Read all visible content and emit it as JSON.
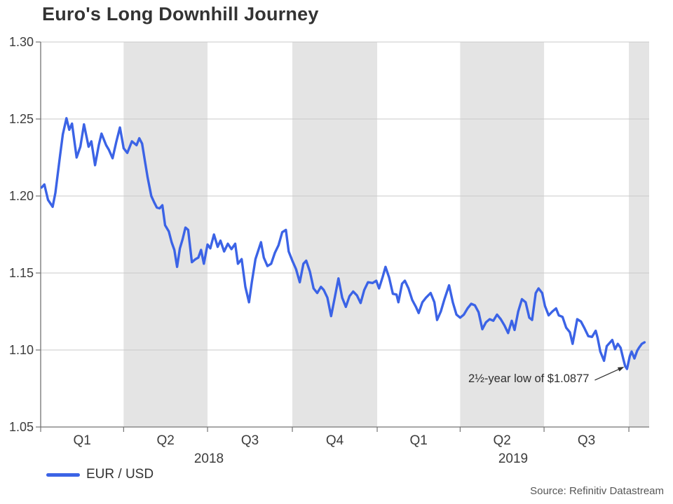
{
  "title": "Euro's Long Downhill Journey",
  "source_note": "Source: Refinitiv Datastream",
  "legend": {
    "label": "EUR / USD"
  },
  "annotation": {
    "text": "2½-year low of $1.0877",
    "target_date": "2019-09-29",
    "target_value": 1.0877
  },
  "colors": {
    "line": "#3b63e6",
    "band": "#e4e4e4",
    "gridline": "#c9c9c9",
    "axis": "#737373",
    "text": "#333333",
    "annotation_ink": "#2e2e2e"
  },
  "chart_data": {
    "type": "line",
    "title": "Euro's Long Downhill Journey",
    "xlabel": "",
    "ylabel": "",
    "ylim": [
      1.05,
      1.3
    ],
    "yticks": [
      1.3,
      1.25,
      1.2,
      1.15,
      1.1,
      1.05
    ],
    "x_range": [
      "2018-01-01",
      "2019-10-23"
    ],
    "grid": "horizontal",
    "legend_position": "bottom-left",
    "quarters": [
      {
        "label": "Q1",
        "start": "2018-01-01",
        "end": "2018-04-01",
        "shaded": false
      },
      {
        "label": "Q2",
        "start": "2018-04-01",
        "end": "2018-07-01",
        "shaded": true
      },
      {
        "label": "Q3",
        "start": "2018-07-01",
        "end": "2018-10-01",
        "shaded": false
      },
      {
        "label": "Q4",
        "start": "2018-10-01",
        "end": "2019-01-01",
        "shaded": true
      },
      {
        "label": "Q1",
        "start": "2019-01-01",
        "end": "2019-04-01",
        "shaded": false
      },
      {
        "label": "Q2",
        "start": "2019-04-01",
        "end": "2019-07-01",
        "shaded": true
      },
      {
        "label": "Q3",
        "start": "2019-07-01",
        "end": "2019-10-01",
        "shaded": false
      },
      {
        "label": "",
        "start": "2019-10-01",
        "end": "2019-10-23",
        "shaded": true
      }
    ],
    "years": [
      {
        "label": "2018",
        "start": "2018-01-01",
        "end": "2019-01-01"
      },
      {
        "label": "2019",
        "start": "2019-01-01",
        "end": "2019-10-23"
      }
    ],
    "series": [
      {
        "name": "EUR / USD",
        "points": [
          [
            "2018-01-02",
            1.2055
          ],
          [
            "2018-01-05",
            1.2075
          ],
          [
            "2018-01-09",
            1.1975
          ],
          [
            "2018-01-14",
            1.193
          ],
          [
            "2018-01-17",
            1.202
          ],
          [
            "2018-01-22",
            1.226
          ],
          [
            "2018-01-25",
            1.24
          ],
          [
            "2018-01-29",
            1.2505
          ],
          [
            "2018-02-01",
            1.243
          ],
          [
            "2018-02-04",
            1.247
          ],
          [
            "2018-02-09",
            1.225
          ],
          [
            "2018-02-13",
            1.232
          ],
          [
            "2018-02-17",
            1.2465
          ],
          [
            "2018-02-22",
            1.232
          ],
          [
            "2018-02-25",
            1.2355
          ],
          [
            "2018-03-01",
            1.22
          ],
          [
            "2018-03-05",
            1.233
          ],
          [
            "2018-03-08",
            1.2405
          ],
          [
            "2018-03-13",
            1.233
          ],
          [
            "2018-03-16",
            1.23
          ],
          [
            "2018-03-20",
            1.2245
          ],
          [
            "2018-03-24",
            1.235
          ],
          [
            "2018-03-28",
            1.2445
          ],
          [
            "2018-04-01",
            1.231
          ],
          [
            "2018-04-05",
            1.228
          ],
          [
            "2018-04-10",
            1.2355
          ],
          [
            "2018-04-15",
            1.233
          ],
          [
            "2018-04-18",
            1.2375
          ],
          [
            "2018-04-21",
            1.234
          ],
          [
            "2018-04-24",
            1.223
          ],
          [
            "2018-04-27",
            1.212
          ],
          [
            "2018-05-01",
            1.2
          ],
          [
            "2018-05-04",
            1.196
          ],
          [
            "2018-05-07",
            1.1925
          ],
          [
            "2018-05-10",
            1.192
          ],
          [
            "2018-05-13",
            1.194
          ],
          [
            "2018-05-16",
            1.181
          ],
          [
            "2018-05-20",
            1.177
          ],
          [
            "2018-05-23",
            1.17
          ],
          [
            "2018-05-26",
            1.165
          ],
          [
            "2018-05-29",
            1.154
          ],
          [
            "2018-06-01",
            1.166
          ],
          [
            "2018-06-04",
            1.172
          ],
          [
            "2018-06-07",
            1.1795
          ],
          [
            "2018-06-10",
            1.178
          ],
          [
            "2018-06-14",
            1.157
          ],
          [
            "2018-06-18",
            1.159
          ],
          [
            "2018-06-21",
            1.16
          ],
          [
            "2018-06-24",
            1.165
          ],
          [
            "2018-06-27",
            1.156
          ],
          [
            "2018-07-01",
            1.1685
          ],
          [
            "2018-07-04",
            1.166
          ],
          [
            "2018-07-08",
            1.175
          ],
          [
            "2018-07-12",
            1.167
          ],
          [
            "2018-07-15",
            1.171
          ],
          [
            "2018-07-19",
            1.164
          ],
          [
            "2018-07-23",
            1.169
          ],
          [
            "2018-07-27",
            1.1655
          ],
          [
            "2018-07-31",
            1.169
          ],
          [
            "2018-08-03",
            1.156
          ],
          [
            "2018-08-07",
            1.159
          ],
          [
            "2018-08-11",
            1.141
          ],
          [
            "2018-08-15",
            1.131
          ],
          [
            "2018-08-18",
            1.144
          ],
          [
            "2018-08-22",
            1.159
          ],
          [
            "2018-08-28",
            1.17
          ],
          [
            "2018-08-31",
            1.16
          ],
          [
            "2018-09-04",
            1.1545
          ],
          [
            "2018-09-08",
            1.156
          ],
          [
            "2018-09-12",
            1.163
          ],
          [
            "2018-09-16",
            1.168
          ],
          [
            "2018-09-20",
            1.1765
          ],
          [
            "2018-09-24",
            1.178
          ],
          [
            "2018-09-27",
            1.164
          ],
          [
            "2018-10-01",
            1.158
          ],
          [
            "2018-10-05",
            1.1525
          ],
          [
            "2018-10-09",
            1.144
          ],
          [
            "2018-10-13",
            1.156
          ],
          [
            "2018-10-16",
            1.158
          ],
          [
            "2018-10-20",
            1.151
          ],
          [
            "2018-10-24",
            1.14
          ],
          [
            "2018-10-28",
            1.137
          ],
          [
            "2018-11-01",
            1.141
          ],
          [
            "2018-11-04",
            1.139
          ],
          [
            "2018-11-08",
            1.134
          ],
          [
            "2018-11-12",
            1.122
          ],
          [
            "2018-11-16",
            1.134
          ],
          [
            "2018-11-20",
            1.1465
          ],
          [
            "2018-11-24",
            1.134
          ],
          [
            "2018-11-28",
            1.128
          ],
          [
            "2018-12-02",
            1.135
          ],
          [
            "2018-12-06",
            1.138
          ],
          [
            "2018-12-10",
            1.1355
          ],
          [
            "2018-12-14",
            1.1305
          ],
          [
            "2018-12-18",
            1.139
          ],
          [
            "2018-12-22",
            1.144
          ],
          [
            "2018-12-27",
            1.1435
          ],
          [
            "2018-12-31",
            1.145
          ],
          [
            "2019-01-03",
            1.14
          ],
          [
            "2019-01-07",
            1.1475
          ],
          [
            "2019-01-10",
            1.154
          ],
          [
            "2019-01-14",
            1.147
          ],
          [
            "2019-01-18",
            1.1365
          ],
          [
            "2019-01-22",
            1.136
          ],
          [
            "2019-01-24",
            1.131
          ],
          [
            "2019-01-28",
            1.143
          ],
          [
            "2019-01-31",
            1.145
          ],
          [
            "2019-02-04",
            1.14
          ],
          [
            "2019-02-08",
            1.1325
          ],
          [
            "2019-02-12",
            1.128
          ],
          [
            "2019-02-15",
            1.124
          ],
          [
            "2019-02-19",
            1.131
          ],
          [
            "2019-02-23",
            1.134
          ],
          [
            "2019-02-28",
            1.137
          ],
          [
            "2019-03-04",
            1.131
          ],
          [
            "2019-03-07",
            1.1195
          ],
          [
            "2019-03-11",
            1.125
          ],
          [
            "2019-03-15",
            1.133
          ],
          [
            "2019-03-20",
            1.142
          ],
          [
            "2019-03-24",
            1.131
          ],
          [
            "2019-03-28",
            1.123
          ],
          [
            "2019-04-01",
            1.121
          ],
          [
            "2019-04-05",
            1.123
          ],
          [
            "2019-04-09",
            1.127
          ],
          [
            "2019-04-13",
            1.13
          ],
          [
            "2019-04-17",
            1.129
          ],
          [
            "2019-04-21",
            1.1245
          ],
          [
            "2019-04-25",
            1.1135
          ],
          [
            "2019-04-29",
            1.118
          ],
          [
            "2019-05-03",
            1.12
          ],
          [
            "2019-05-07",
            1.119
          ],
          [
            "2019-05-11",
            1.123
          ],
          [
            "2019-05-15",
            1.12
          ],
          [
            "2019-05-19",
            1.116
          ],
          [
            "2019-05-23",
            1.111
          ],
          [
            "2019-05-27",
            1.119
          ],
          [
            "2019-05-30",
            1.113
          ],
          [
            "2019-06-03",
            1.125
          ],
          [
            "2019-06-07",
            1.133
          ],
          [
            "2019-06-11",
            1.131
          ],
          [
            "2019-06-15",
            1.121
          ],
          [
            "2019-06-18",
            1.1195
          ],
          [
            "2019-06-22",
            1.137
          ],
          [
            "2019-06-25",
            1.14
          ],
          [
            "2019-06-29",
            1.137
          ],
          [
            "2019-07-02",
            1.1285
          ],
          [
            "2019-07-06",
            1.1225
          ],
          [
            "2019-07-10",
            1.125
          ],
          [
            "2019-07-14",
            1.127
          ],
          [
            "2019-07-17",
            1.1225
          ],
          [
            "2019-07-21",
            1.1215
          ],
          [
            "2019-07-25",
            1.1145
          ],
          [
            "2019-07-29",
            1.1115
          ],
          [
            "2019-08-01",
            1.104
          ],
          [
            "2019-08-06",
            1.12
          ],
          [
            "2019-08-10",
            1.1185
          ],
          [
            "2019-08-14",
            1.114
          ],
          [
            "2019-08-18",
            1.109
          ],
          [
            "2019-08-22",
            1.1085
          ],
          [
            "2019-08-26",
            1.1125
          ],
          [
            "2019-08-28",
            1.108
          ],
          [
            "2019-08-31",
            1.099
          ],
          [
            "2019-09-04",
            1.093
          ],
          [
            "2019-09-07",
            1.1025
          ],
          [
            "2019-09-10",
            1.1045
          ],
          [
            "2019-09-13",
            1.1065
          ],
          [
            "2019-09-16",
            1.1005
          ],
          [
            "2019-09-19",
            1.104
          ],
          [
            "2019-09-22",
            1.1015
          ],
          [
            "2019-09-25",
            1.094
          ],
          [
            "2019-09-27",
            1.0895
          ],
          [
            "2019-09-29",
            1.0877
          ],
          [
            "2019-10-02",
            1.096
          ],
          [
            "2019-10-04",
            1.099
          ],
          [
            "2019-10-07",
            1.0945
          ],
          [
            "2019-10-10",
            1.0995
          ],
          [
            "2019-10-12",
            1.1015
          ],
          [
            "2019-10-15",
            1.104
          ],
          [
            "2019-10-18",
            1.105
          ]
        ]
      }
    ]
  }
}
